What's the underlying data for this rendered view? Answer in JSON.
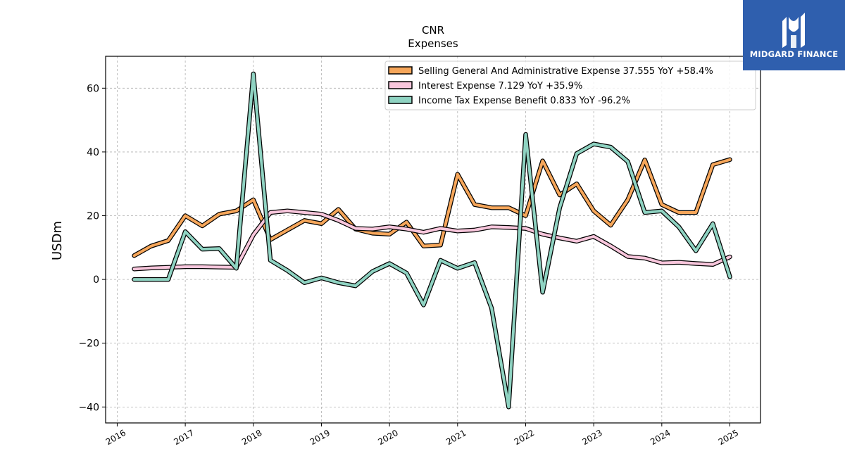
{
  "logo": {
    "text": "MIDGARD FINANCE"
  },
  "chart_data": {
    "type": "line",
    "title": "CNR",
    "subtitle": "Expenses",
    "xlabel": "",
    "ylabel": "USDm",
    "xlim": [
      2015.83,
      2025.45
    ],
    "ylim": [
      -45,
      70
    ],
    "xticks": [
      2016,
      2017,
      2018,
      2019,
      2020,
      2021,
      2022,
      2023,
      2024,
      2025
    ],
    "xtick_labels": [
      "2016",
      "2017",
      "2018",
      "2019",
      "2020",
      "2021",
      "2022",
      "2023",
      "2024",
      "2025"
    ],
    "yticks": [
      -40,
      -20,
      0,
      20,
      40,
      60
    ],
    "ytick_labels": [
      "−40",
      "−20",
      "0",
      "20",
      "40",
      "60"
    ],
    "grid": true,
    "legend_position": "top-right",
    "x": [
      2016.25,
      2016.5,
      2016.75,
      2017.0,
      2017.25,
      2017.5,
      2017.75,
      2018.0,
      2018.25,
      2018.5,
      2018.75,
      2019.0,
      2019.25,
      2019.5,
      2019.75,
      2020.0,
      2020.25,
      2020.5,
      2020.75,
      2021.0,
      2021.25,
      2021.5,
      2021.75,
      2022.0,
      2022.25,
      2022.5,
      2022.75,
      2023.0,
      2023.25,
      2023.5,
      2023.75,
      2024.0,
      2024.25,
      2024.5,
      2024.75,
      2025.0
    ],
    "series": [
      {
        "name": "Selling General And Administrative Expense",
        "legend_label": "Selling General And Administrative Expense  37.555 YoY +58.4%",
        "color": "#f6a65a",
        "values": [
          7.5,
          10.5,
          12.2,
          20.0,
          16.8,
          20.5,
          21.5,
          25.0,
          12.5,
          15.5,
          18.5,
          17.5,
          22.0,
          15.8,
          14.5,
          14.2,
          18.0,
          10.5,
          10.8,
          33.0,
          23.5,
          22.5,
          22.5,
          20.0,
          37.2,
          26.5,
          30.0,
          21.5,
          17.0,
          25.0,
          37.5,
          23.5,
          21.0,
          21.0,
          36.0,
          37.6
        ]
      },
      {
        "name": "Interest Expense",
        "legend_label": "Interest Expense  7.129 YoY +35.9%",
        "color": "#f8c6dc",
        "values": [
          3.3,
          3.6,
          3.8,
          4.0,
          4.0,
          3.9,
          3.8,
          14.0,
          21.0,
          21.5,
          21.0,
          20.5,
          18.5,
          16.0,
          15.8,
          16.5,
          15.8,
          14.8,
          16.0,
          15.2,
          15.5,
          16.5,
          16.3,
          16.0,
          14.2,
          13.0,
          12.0,
          13.5,
          10.5,
          7.2,
          6.7,
          5.2,
          5.4,
          5.0,
          4.7,
          7.1
        ]
      },
      {
        "name": "Income Tax Expense Benefit",
        "legend_label": "Income Tax Expense Benefit  0.833 YoY -96.2%",
        "color": "#8fd3c2",
        "values": [
          0.0,
          0.0,
          0.0,
          15.0,
          9.5,
          9.7,
          3.5,
          64.5,
          6.0,
          2.8,
          -1.0,
          0.5,
          -1.0,
          -2.0,
          2.5,
          5.0,
          2.0,
          -8.0,
          6.0,
          3.5,
          5.3,
          -9.0,
          -40.0,
          45.5,
          -4.0,
          22.5,
          39.5,
          42.5,
          41.5,
          37.0,
          21.0,
          21.5,
          16.5,
          9.0,
          17.5,
          0.8
        ]
      }
    ]
  }
}
